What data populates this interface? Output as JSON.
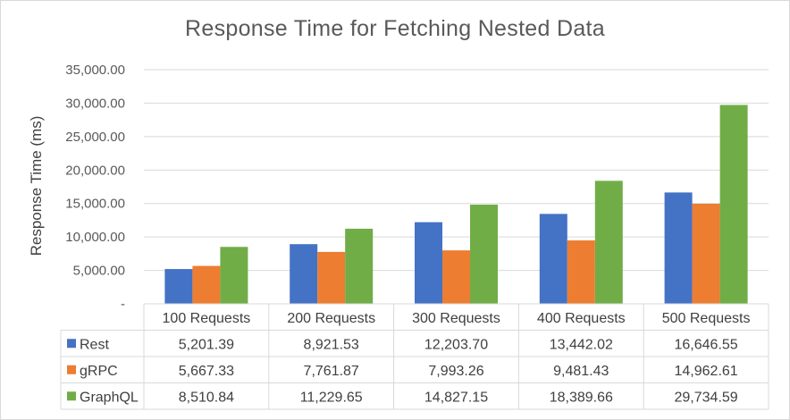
{
  "chart_data": {
    "type": "bar",
    "title": "Response Time for Fetching Nested Data",
    "ylabel": "Response Time (ms)",
    "xlabel": "",
    "ylim": [
      0,
      35000
    ],
    "ytick_values": [
      0,
      5000,
      10000,
      15000,
      20000,
      25000,
      30000,
      35000
    ],
    "ytick_labels": [
      "-",
      "5,000.00",
      "10,000.00",
      "15,000.00",
      "20,000.00",
      "25,000.00",
      "30,000.00",
      "35,000.00"
    ],
    "grid": true,
    "legend": "data-table",
    "categories": [
      "100 Requests",
      "200 Requests",
      "300 Requests",
      "400 Requests",
      "500 Requests"
    ],
    "series": [
      {
        "name": "Rest",
        "color": "#4472c4",
        "values": [
          5201.39,
          8921.53,
          12203.7,
          13442.02,
          16646.55
        ],
        "labels": [
          "5,201.39",
          "8,921.53",
          "12,203.70",
          "13,442.02",
          "16,646.55"
        ]
      },
      {
        "name": "gRPC",
        "color": "#ed7d31",
        "values": [
          5667.33,
          7761.87,
          7993.26,
          9481.43,
          14962.61
        ],
        "labels": [
          "5,667.33",
          "7,761.87",
          "7,993.26",
          "9,481.43",
          "14,962.61"
        ]
      },
      {
        "name": "GraphQL",
        "color": "#70ad47",
        "values": [
          8510.84,
          11229.65,
          14827.15,
          18389.66,
          29734.59
        ],
        "labels": [
          "8,510.84",
          "11,229.65",
          "14,827.15",
          "18,389.66",
          "29,734.59"
        ]
      }
    ]
  }
}
